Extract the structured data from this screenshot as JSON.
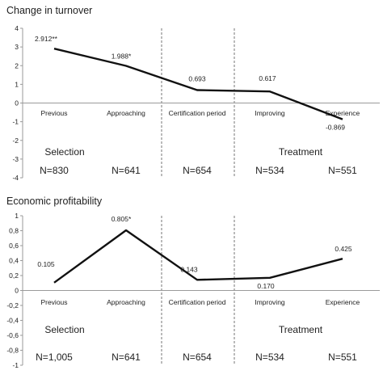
{
  "chart_data": [
    {
      "type": "line",
      "title": "Change in turnover",
      "categories": [
        "Previous",
        "Approaching",
        "Certification period",
        "Improving",
        "Experience"
      ],
      "values": [
        2.912,
        1.988,
        0.693,
        0.617,
        -0.869
      ],
      "data_labels": [
        "2.912**",
        "1.988*",
        "0.693",
        "0.617",
        "-0.869"
      ],
      "ylim": [
        -4,
        4
      ],
      "y_ticks": [
        "4",
        "3",
        "2",
        "1",
        "0",
        "-1",
        "-2",
        "-3",
        "-4"
      ],
      "groups": [
        "Selection",
        "Treatment"
      ],
      "n_labels": [
        "N=830",
        "N=641",
        "N=654",
        "N=534",
        "N=551"
      ],
      "legend": "none",
      "grid": false
    },
    {
      "type": "line",
      "title": "Economic profitability",
      "categories": [
        "Previous",
        "Approaching",
        "Certification period",
        "Improving",
        "Experience"
      ],
      "values": [
        0.105,
        0.805,
        0.143,
        0.17,
        0.425
      ],
      "data_labels": [
        "0.105",
        "0.805*",
        "0.143",
        "0.170",
        "0.425"
      ],
      "ylim": [
        -1,
        1
      ],
      "y_ticks": [
        "1",
        "0,8",
        "0,6",
        "0,4",
        "0,2",
        "0",
        "-0,2",
        "-0,4",
        "-0,6",
        "-0,8",
        "-1"
      ],
      "groups": [
        "Selection",
        "Treatment"
      ],
      "n_labels": [
        "N=1,005",
        "N=641",
        "N=654",
        "N=534",
        "N=551"
      ],
      "legend": "none",
      "grid": false
    }
  ]
}
